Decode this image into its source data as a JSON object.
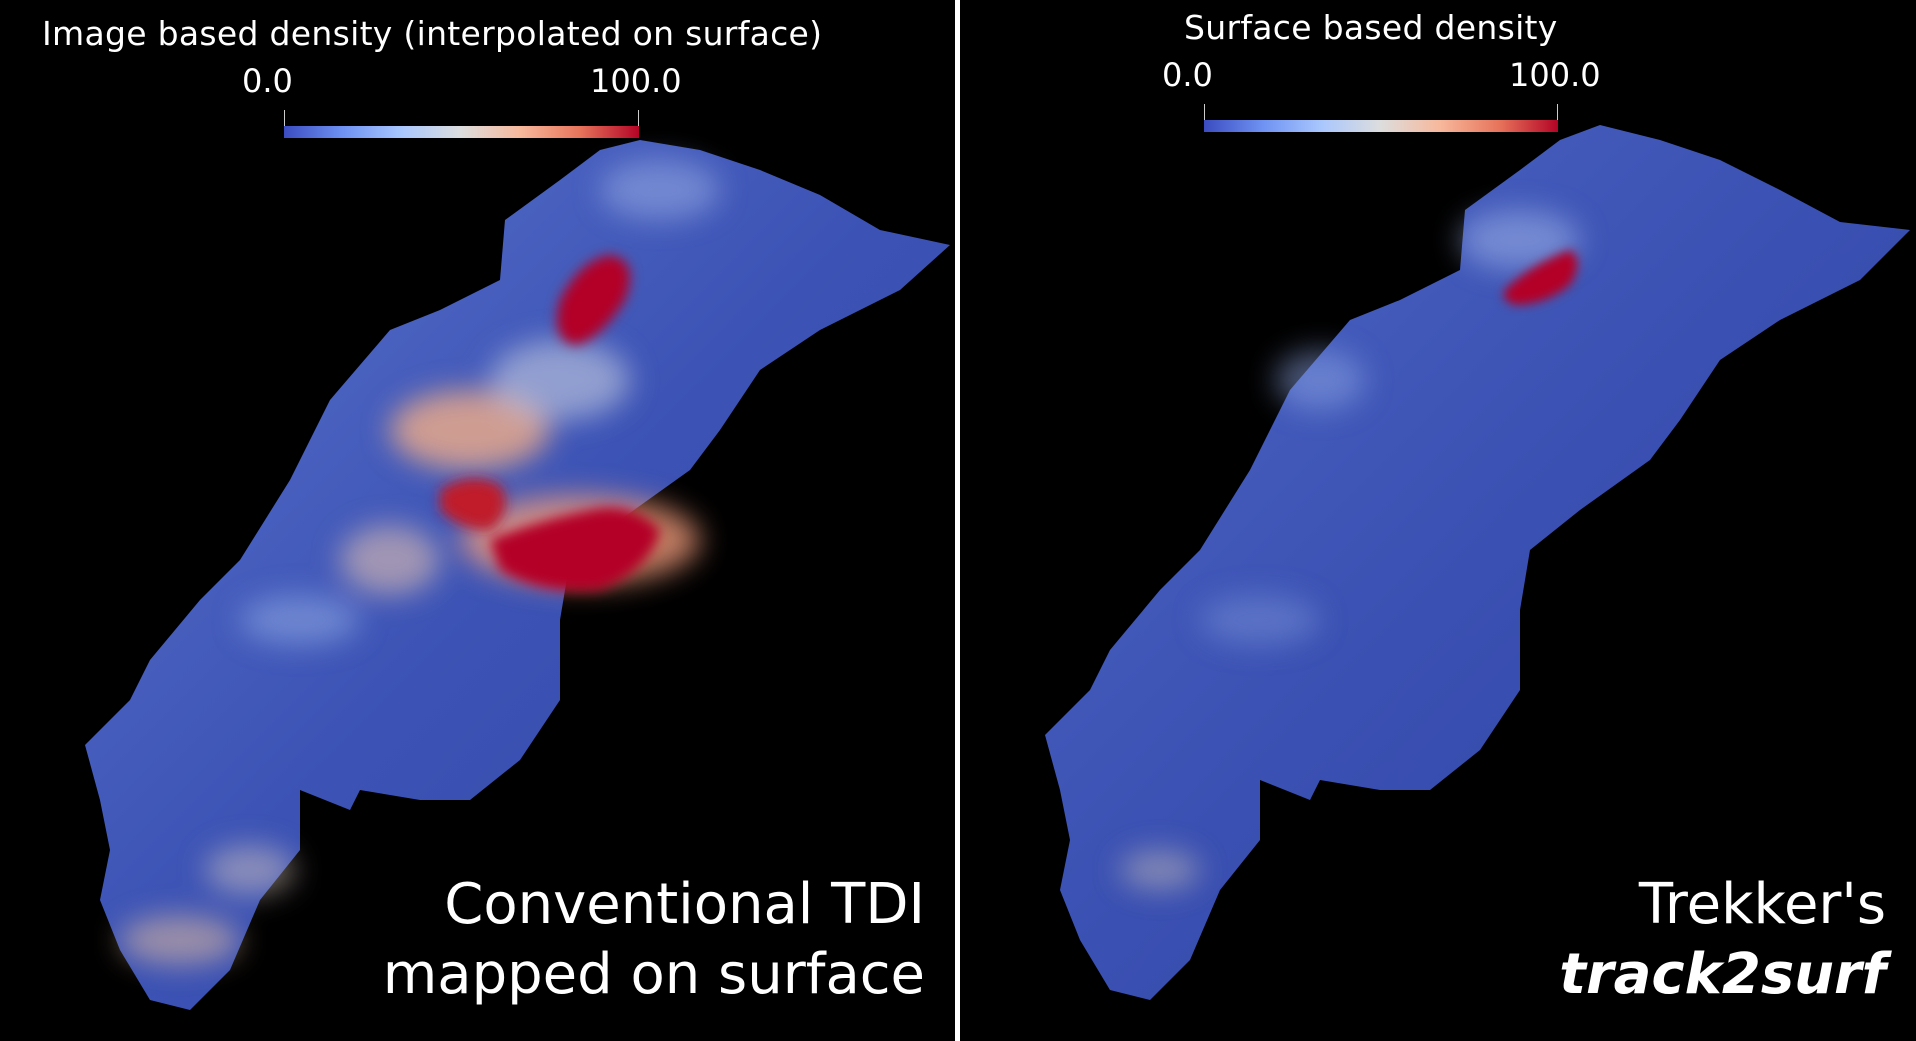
{
  "left_panel": {
    "colorbar": {
      "title": "Image based density (interpolated on surface)",
      "min_label": "0.0",
      "max_label": "100.0"
    },
    "caption_line1": "Conventional TDI",
    "caption_line2": "mapped on surface"
  },
  "right_panel": {
    "colorbar": {
      "title": "Surface based density",
      "min_label": "0.0",
      "max_label": "100.0"
    },
    "caption_line1": "Trekker's",
    "caption_line2": "track2surf"
  },
  "colors": {
    "background": "#000000",
    "surface_blue": "#3d55b8",
    "low": "#3b4cc0",
    "mid": "#dddddd",
    "high": "#b40426"
  }
}
